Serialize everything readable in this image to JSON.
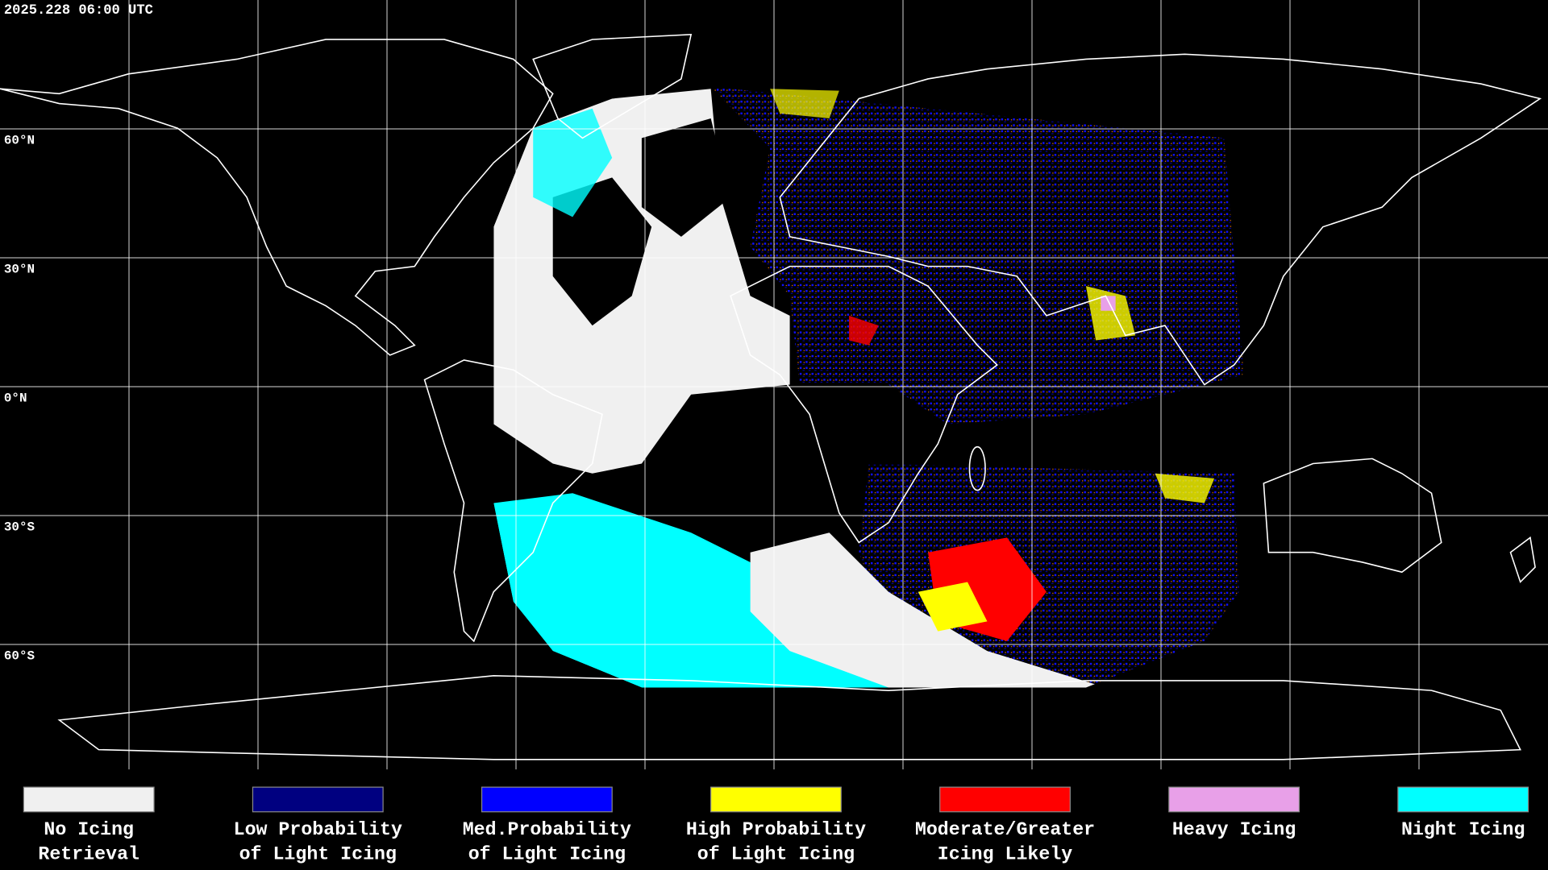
{
  "header": {
    "timestamp": "2025.228 06:00 UTC"
  },
  "latitude_labels": [
    "60°N",
    "30°N",
    "0°N",
    "30°S",
    "60°S"
  ],
  "legend": [
    {
      "color": "#f0f0f0",
      "lines": [
        "No Icing",
        "Retrieval"
      ]
    },
    {
      "color": "#000080",
      "lines": [
        "Low Probability",
        "of Light Icing"
      ]
    },
    {
      "color": "#0000ff",
      "lines": [
        "Med.Probability",
        "of Light Icing"
      ]
    },
    {
      "color": "#ffff00",
      "lines": [
        "High Probability",
        "of Light Icing"
      ]
    },
    {
      "color": "#ff0000",
      "lines": [
        "Moderate/Greater",
        "Icing Likely"
      ]
    },
    {
      "color": "#e8a0e8",
      "lines": [
        "Heavy Icing"
      ]
    },
    {
      "color": "#00ffff",
      "lines": [
        "Night Icing"
      ]
    }
  ]
}
